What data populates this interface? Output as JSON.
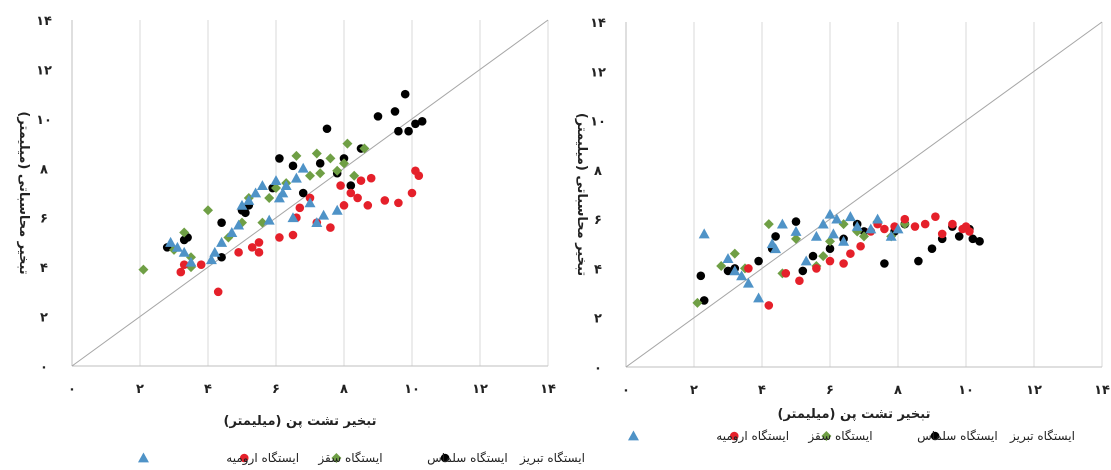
{
  "chart_data": [
    {
      "type": "scatter",
      "xlabel": "تبخیر تشت پن (میلیمتر)",
      "ylabel": "تبخیر محاسباتی (میلیمتر)",
      "xlim": [
        0,
        14
      ],
      "ylim": [
        0,
        14
      ],
      "xticks": [
        "۰",
        "۲",
        "۴",
        "۶",
        "۸",
        "۱۰",
        "۱۲",
        "۱۴"
      ],
      "yticks": [
        "۰",
        "۲",
        "۴",
        "۶",
        "۸",
        "۱۰",
        "۱۲",
        "۱۴"
      ],
      "grid": "vertical",
      "reference_line": "1:1",
      "legend_position": "bottom",
      "series": [
        {
          "name": "ایستگاه تبریز",
          "marker": "circle",
          "color": "#000000",
          "points": [
            [
              2.8,
              4.8
            ],
            [
              3.3,
              5.1
            ],
            [
              3.4,
              5.2
            ],
            [
              4.4,
              4.4
            ],
            [
              4.4,
              5.8
            ],
            [
              5.0,
              6.3
            ],
            [
              5.1,
              6.2
            ],
            [
              5.2,
              6.5
            ],
            [
              5.9,
              7.2
            ],
            [
              6.1,
              8.4
            ],
            [
              6.5,
              8.1
            ],
            [
              6.8,
              7.0
            ],
            [
              7.3,
              8.2
            ],
            [
              7.5,
              9.6
            ],
            [
              7.8,
              7.8
            ],
            [
              8.0,
              8.4
            ],
            [
              8.2,
              7.3
            ],
            [
              8.5,
              8.8
            ],
            [
              9.0,
              10.1
            ],
            [
              9.5,
              10.3
            ],
            [
              9.6,
              9.5
            ],
            [
              9.8,
              11.0
            ],
            [
              9.9,
              9.5
            ],
            [
              10.1,
              9.8
            ],
            [
              10.3,
              9.9
            ]
          ]
        },
        {
          "name": "ایستگاه سلماس",
          "marker": "diamond",
          "color": "#6f9f45",
          "points": [
            [
              2.1,
              3.9
            ],
            [
              3.0,
              4.7
            ],
            [
              3.3,
              5.4
            ],
            [
              3.5,
              4.0
            ],
            [
              3.5,
              4.4
            ],
            [
              4.0,
              6.3
            ],
            [
              4.6,
              5.2
            ],
            [
              5.0,
              5.8
            ],
            [
              5.2,
              6.8
            ],
            [
              5.6,
              5.8
            ],
            [
              5.8,
              6.8
            ],
            [
              6.0,
              7.2
            ],
            [
              6.3,
              7.4
            ],
            [
              6.6,
              8.5
            ],
            [
              7.0,
              7.7
            ],
            [
              7.2,
              8.6
            ],
            [
              7.3,
              7.8
            ],
            [
              7.6,
              8.4
            ],
            [
              7.8,
              7.9
            ],
            [
              8.0,
              8.2
            ],
            [
              8.1,
              9.0
            ],
            [
              8.3,
              7.7
            ],
            [
              8.6,
              8.8
            ]
          ]
        },
        {
          "name": "ایستگاه سقز",
          "marker": "circle",
          "color": "#e5202a",
          "points": [
            [
              3.2,
              3.8
            ],
            [
              3.3,
              4.1
            ],
            [
              3.8,
              4.1
            ],
            [
              4.3,
              3.0
            ],
            [
              4.9,
              4.6
            ],
            [
              5.3,
              4.8
            ],
            [
              5.5,
              4.6
            ],
            [
              5.5,
              5.0
            ],
            [
              6.1,
              5.2
            ],
            [
              6.5,
              5.3
            ],
            [
              6.6,
              6.0
            ],
            [
              6.7,
              6.4
            ],
            [
              7.0,
              6.8
            ],
            [
              7.2,
              5.8
            ],
            [
              7.6,
              5.6
            ],
            [
              7.9,
              7.3
            ],
            [
              8.0,
              6.5
            ],
            [
              8.2,
              7.0
            ],
            [
              8.4,
              6.8
            ],
            [
              8.5,
              7.5
            ],
            [
              8.7,
              6.5
            ],
            [
              8.8,
              7.6
            ],
            [
              9.2,
              6.7
            ],
            [
              9.6,
              6.6
            ],
            [
              10.0,
              7.0
            ],
            [
              10.1,
              7.9
            ],
            [
              10.2,
              7.7
            ]
          ]
        },
        {
          "name": "ایستگاه ارومیه",
          "marker": "triangle",
          "color": "#4f93c7",
          "points": [
            [
              2.9,
              5.0
            ],
            [
              3.1,
              4.8
            ],
            [
              3.3,
              4.6
            ],
            [
              3.5,
              4.2
            ],
            [
              4.1,
              4.3
            ],
            [
              4.2,
              4.6
            ],
            [
              4.4,
              5.0
            ],
            [
              4.7,
              5.4
            ],
            [
              4.9,
              5.7
            ],
            [
              5.0,
              6.5
            ],
            [
              5.2,
              6.7
            ],
            [
              5.4,
              7.0
            ],
            [
              5.6,
              7.3
            ],
            [
              5.8,
              5.9
            ],
            [
              6.0,
              7.5
            ],
            [
              6.1,
              6.8
            ],
            [
              6.2,
              7.0
            ],
            [
              6.3,
              7.3
            ],
            [
              6.5,
              6.0
            ],
            [
              6.6,
              7.6
            ],
            [
              6.8,
              8.0
            ],
            [
              7.0,
              6.6
            ],
            [
              7.2,
              5.8
            ],
            [
              7.4,
              6.1
            ],
            [
              7.8,
              6.3
            ]
          ]
        }
      ]
    },
    {
      "type": "scatter",
      "xlabel": "تبخیر تشت پن (میلیمتر)",
      "ylabel": "تبخیر محاسباتی (میلیمتر)",
      "xlim": [
        0,
        14
      ],
      "ylim": [
        0,
        14
      ],
      "xticks": [
        "۰",
        "۲",
        "۴",
        "۶",
        "۸",
        "۱۰",
        "۱۲",
        "۱۴"
      ],
      "yticks": [
        "۰",
        "۲",
        "۴",
        "۶",
        "۸",
        "۱۰",
        "۱۲",
        "۱۴"
      ],
      "grid": "vertical",
      "reference_line": "1:1",
      "legend_position": "bottom",
      "series": [
        {
          "name": "ایستگاه تبریز",
          "marker": "circle",
          "color": "#000000",
          "points": [
            [
              2.2,
              3.7
            ],
            [
              2.3,
              2.7
            ],
            [
              3.0,
              3.9
            ],
            [
              3.2,
              4.0
            ],
            [
              3.9,
              4.3
            ],
            [
              4.3,
              4.8
            ],
            [
              4.4,
              5.3
            ],
            [
              5.0,
              5.9
            ],
            [
              5.2,
              3.9
            ],
            [
              5.5,
              4.5
            ],
            [
              6.0,
              4.8
            ],
            [
              6.4,
              5.2
            ],
            [
              6.8,
              5.8
            ],
            [
              7.0,
              5.5
            ],
            [
              7.6,
              4.2
            ],
            [
              7.9,
              5.5
            ],
            [
              8.2,
              5.8
            ],
            [
              8.6,
              4.3
            ],
            [
              9.0,
              4.8
            ],
            [
              9.3,
              5.2
            ],
            [
              9.6,
              5.7
            ],
            [
              9.8,
              5.3
            ],
            [
              10.1,
              5.6
            ],
            [
              10.2,
              5.2
            ],
            [
              10.4,
              5.1
            ]
          ]
        },
        {
          "name": "ایستگاه سلماس",
          "marker": "diamond",
          "color": "#6f9f45",
          "points": [
            [
              2.1,
              2.6
            ],
            [
              2.8,
              4.1
            ],
            [
              3.2,
              4.6
            ],
            [
              3.5,
              4.0
            ],
            [
              4.2,
              5.8
            ],
            [
              4.6,
              3.8
            ],
            [
              5.0,
              5.2
            ],
            [
              5.6,
              4.1
            ],
            [
              5.8,
              4.5
            ],
            [
              6.0,
              5.1
            ],
            [
              6.4,
              5.8
            ],
            [
              6.8,
              5.5
            ],
            [
              7.0,
              5.3
            ],
            [
              7.4,
              5.9
            ],
            [
              7.8,
              5.3
            ],
            [
              8.2,
              5.8
            ]
          ]
        },
        {
          "name": "ایستگاه سقز",
          "marker": "circle",
          "color": "#e5202a",
          "points": [
            [
              3.6,
              4.0
            ],
            [
              4.2,
              2.5
            ],
            [
              4.7,
              3.8
            ],
            [
              5.1,
              3.5
            ],
            [
              5.6,
              4.0
            ],
            [
              6.0,
              4.3
            ],
            [
              6.4,
              4.2
            ],
            [
              6.6,
              4.6
            ],
            [
              6.9,
              4.9
            ],
            [
              7.2,
              5.5
            ],
            [
              7.4,
              5.8
            ],
            [
              7.6,
              5.6
            ],
            [
              7.9,
              5.7
            ],
            [
              8.2,
              6.0
            ],
            [
              8.5,
              5.7
            ],
            [
              8.8,
              5.8
            ],
            [
              9.1,
              6.1
            ],
            [
              9.3,
              5.4
            ],
            [
              9.6,
              5.8
            ],
            [
              9.9,
              5.6
            ],
            [
              10.0,
              5.7
            ],
            [
              10.1,
              5.5
            ]
          ]
        },
        {
          "name": "ایستگاه ارومیه",
          "marker": "triangle",
          "color": "#4f93c7",
          "points": [
            [
              2.3,
              5.4
            ],
            [
              3.0,
              4.4
            ],
            [
              3.2,
              3.9
            ],
            [
              3.4,
              3.7
            ],
            [
              3.6,
              3.4
            ],
            [
              3.9,
              2.8
            ],
            [
              4.3,
              5.0
            ],
            [
              4.4,
              4.8
            ],
            [
              4.6,
              5.8
            ],
            [
              5.0,
              5.5
            ],
            [
              5.3,
              4.3
            ],
            [
              5.6,
              5.3
            ],
            [
              5.8,
              5.8
            ],
            [
              6.0,
              6.2
            ],
            [
              6.1,
              5.4
            ],
            [
              6.2,
              6.0
            ],
            [
              6.4,
              5.1
            ],
            [
              6.6,
              6.1
            ],
            [
              6.8,
              5.7
            ],
            [
              7.2,
              5.6
            ],
            [
              7.4,
              6.0
            ],
            [
              7.8,
              5.3
            ],
            [
              8.0,
              5.6
            ]
          ]
        }
      ]
    }
  ]
}
